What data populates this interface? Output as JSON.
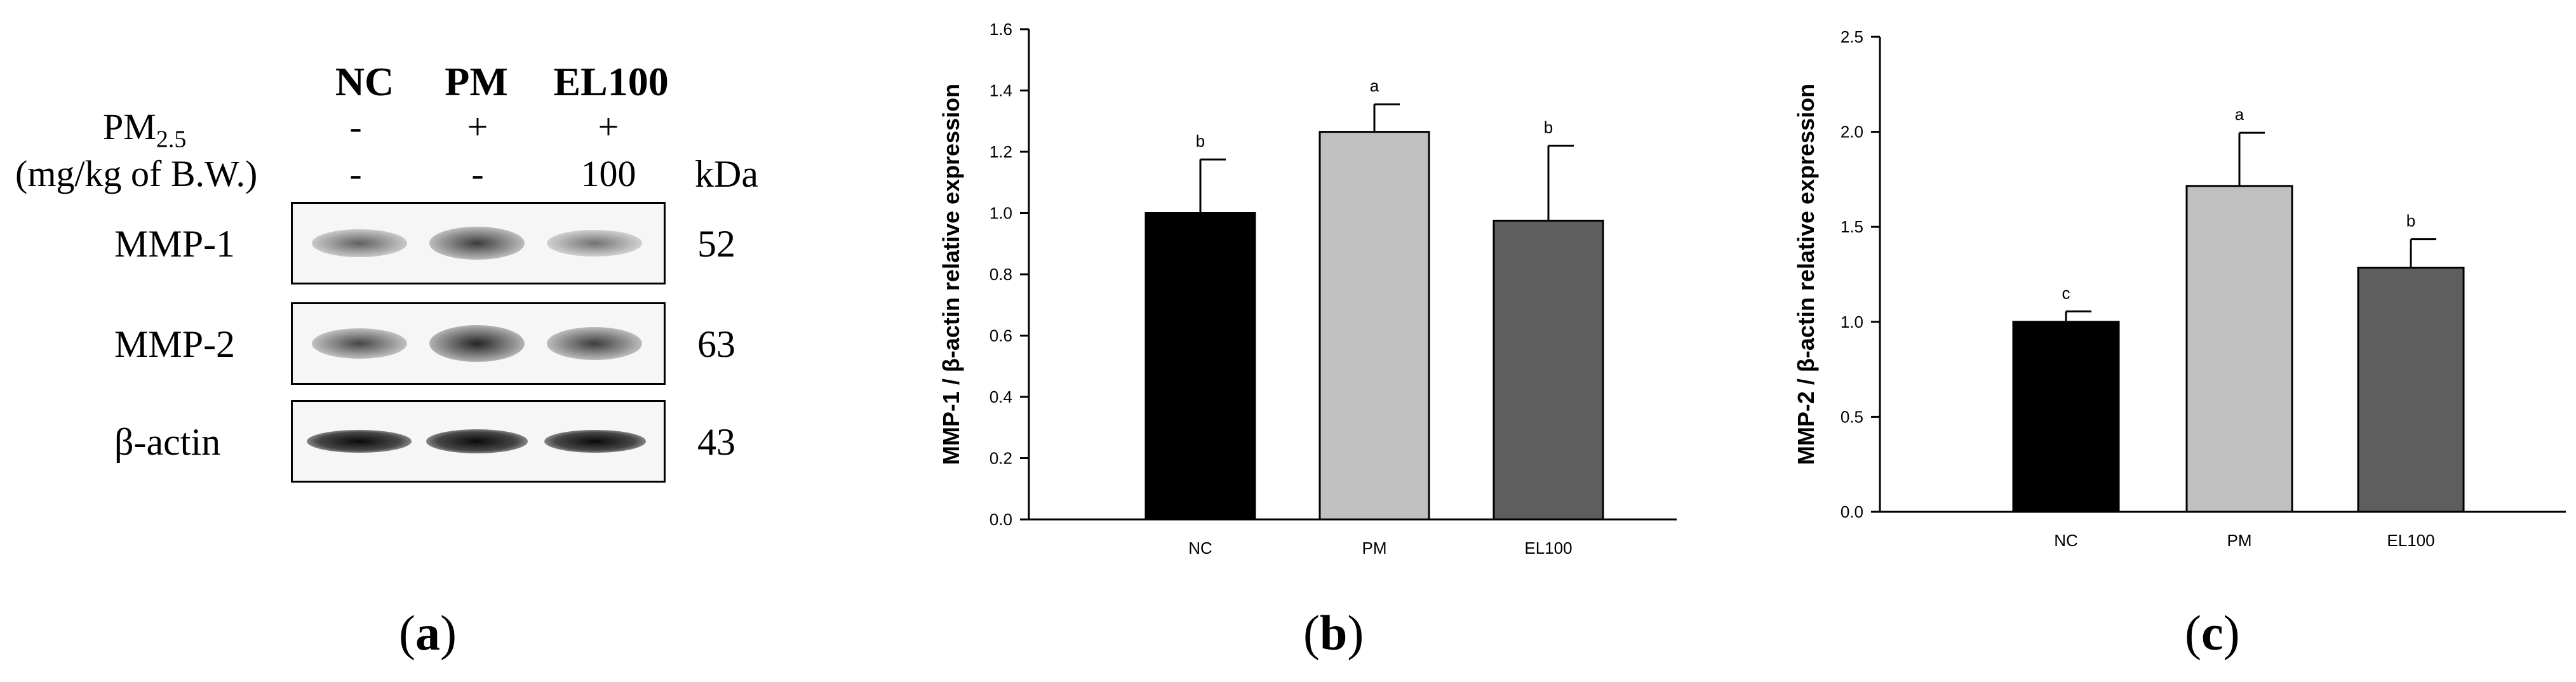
{
  "panel_a": {
    "label_paren_open": "(",
    "label_letter": "a",
    "label_paren_close": ")",
    "lane_headers": [
      "NC",
      "PM",
      "EL100"
    ],
    "treatment_label": "PM",
    "treatment_subscript": "2.5",
    "dose_label": "(mg/kg of B.W.)",
    "pm_signs": [
      "-",
      "+",
      "+"
    ],
    "dose_values": [
      "-",
      "-",
      "100"
    ],
    "kda_header": "kDa",
    "blots": [
      {
        "protein": "MMP-1",
        "kda": "52"
      },
      {
        "protein": "MMP-2",
        "kda": "63"
      },
      {
        "protein": "β-actin",
        "kda": "43"
      }
    ]
  },
  "panel_b": {
    "label_paren_open": "(",
    "label_letter": "b",
    "label_paren_close": ")"
  },
  "panel_c": {
    "label_paren_open": "(",
    "label_letter": "c",
    "label_paren_close": ")"
  },
  "chart_data": [
    {
      "type": "bar",
      "title": "",
      "xlabel": "",
      "ylabel": "MMP-1 / β-actin relative expression",
      "categories": [
        "NC",
        "PM",
        "EL100"
      ],
      "values": [
        1.0,
        1.265,
        0.975
      ],
      "errors": [
        0.175,
        0.09,
        0.245
      ],
      "significance": [
        "b",
        "a",
        "b"
      ],
      "colors": [
        "#000000",
        "#c0c0c0",
        "#5e5e5e"
      ],
      "ylim": [
        0,
        1.6
      ],
      "yticks": [
        0.0,
        0.2,
        0.4,
        0.6,
        0.8,
        1.0,
        1.2,
        1.4,
        1.6
      ],
      "ytick_labels": [
        "0.0",
        "0.2",
        "0.4",
        "0.6",
        "0.8",
        "1.0",
        "1.2",
        "1.4",
        "1.6"
      ],
      "grid": false
    },
    {
      "type": "bar",
      "title": "",
      "xlabel": "",
      "ylabel": "MMP-2 / β-actin relative expression",
      "categories": [
        "NC",
        "PM",
        "EL100"
      ],
      "values": [
        1.0,
        1.715,
        1.285
      ],
      "errors": [
        0.055,
        0.28,
        0.15
      ],
      "significance": [
        "c",
        "a",
        "b"
      ],
      "colors": [
        "#000000",
        "#c0c0c0",
        "#5e5e5e"
      ],
      "ylim": [
        0,
        2.5
      ],
      "yticks": [
        0.0,
        0.5,
        1.0,
        1.5,
        2.0,
        2.5
      ],
      "ytick_labels": [
        "0.0",
        "0.5",
        "1.0",
        "1.5",
        "2.0",
        "2.5"
      ],
      "grid": false
    }
  ]
}
